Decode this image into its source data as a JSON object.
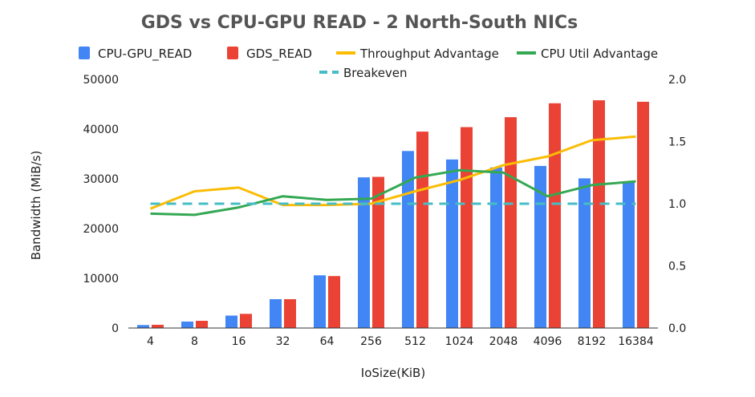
{
  "chart_data": {
    "type": "bar",
    "title": "GDS vs CPU-GPU READ - 2 North-South NICs",
    "xlabel": "IoSize(KiB)",
    "ylabel": "Bandwidth (MiB/s)",
    "ylim": [
      0,
      50000
    ],
    "y2lim": [
      0,
      2.0
    ],
    "y_ticks": [
      "0",
      "10000",
      "20000",
      "30000",
      "40000",
      "50000"
    ],
    "y2_ticks": [
      "0.0",
      "0.5",
      "1.0",
      "1.5",
      "2.0"
    ],
    "categories": [
      "4",
      "8",
      "16",
      "32",
      "64",
      "256",
      "512",
      "1024",
      "2048",
      "4096",
      "8192",
      "16384"
    ],
    "legend_position": "top",
    "grid": false,
    "series": [
      {
        "name": "CPU-GPU_READ",
        "kind": "bar",
        "axis": "left",
        "color": "#4285F4",
        "values": [
          600,
          1300,
          2500,
          5800,
          10600,
          30300,
          35600,
          33900,
          32300,
          32600,
          30100,
          29500
        ]
      },
      {
        "name": "GDS_READ",
        "kind": "bar",
        "axis": "left",
        "color": "#EA4335",
        "values": [
          650,
          1450,
          2850,
          5800,
          10450,
          30400,
          39500,
          40400,
          42400,
          45200,
          45800,
          45500
        ]
      },
      {
        "name": "Throughput Advantage",
        "kind": "line",
        "axis": "right",
        "color": "#FBBC04",
        "dashed": false,
        "values": [
          0.96,
          1.1,
          1.13,
          0.99,
          0.99,
          1.0,
          1.1,
          1.19,
          1.31,
          1.38,
          1.51,
          1.54
        ]
      },
      {
        "name": "CPU Util Advantage",
        "kind": "line",
        "axis": "right",
        "color": "#34A853",
        "dashed": false,
        "values": [
          0.92,
          0.91,
          0.97,
          1.06,
          1.03,
          1.04,
          1.21,
          1.27,
          1.25,
          1.06,
          1.15,
          1.18
        ]
      },
      {
        "name": "Breakeven",
        "kind": "line",
        "axis": "right",
        "color": "#46BDC6",
        "dashed": true,
        "values": [
          1.0,
          1.0,
          1.0,
          1.0,
          1.0,
          1.0,
          1.0,
          1.0,
          1.0,
          1.0,
          1.0,
          1.0
        ]
      }
    ]
  }
}
